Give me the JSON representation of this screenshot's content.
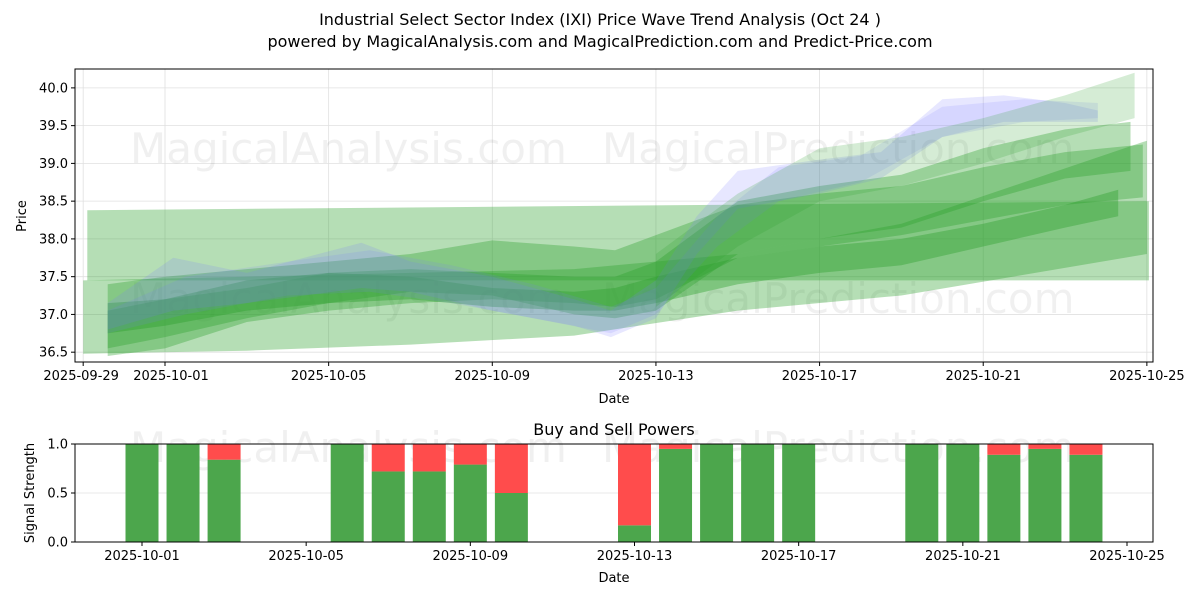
{
  "header": {
    "title": "Industrial Select Sector Index (IXI) Price Wave Trend Analysis (Oct 24 )",
    "subtitle": "powered by MagicalAnalysis.com and MagicalPrediction.com and Predict-Price.com"
  },
  "watermarks": [
    "MagicalAnalysis.com",
    "MagicalPrediction.com"
  ],
  "colors": {
    "band_green": "#2ca02c",
    "band_blue": "#7b7bff",
    "buy": "#4ca64c",
    "sell": "#ff4c4c",
    "grid": "#e0e0e0"
  },
  "chart_data": [
    {
      "type": "area",
      "title": "",
      "xlabel": "Date",
      "ylabel": "Price",
      "x_range": [
        "2025-09-29",
        "2025-10-25"
      ],
      "x_min_offset_days": -0.2,
      "x_max_offset_days": 26.15,
      "ylim": [
        36.37,
        40.25
      ],
      "grid": true,
      "x_ticks": [
        "2025-09-29",
        "2025-10-01",
        "2025-10-05",
        "2025-10-09",
        "2025-10-13",
        "2025-10-17",
        "2025-10-21",
        "2025-10-25"
      ],
      "y_ticks": [
        "36.5",
        "37.0",
        "37.5",
        "38.0",
        "38.5",
        "39.0",
        "39.5",
        "40.0"
      ],
      "bands": [
        {
          "name": "wide-band-1",
          "color": "green",
          "opacity": 0.35,
          "x": [
            0.1,
            26.05
          ],
          "upper": [
            38.38,
            38.5
          ],
          "lower": [
            37.45,
            37.45
          ],
          "skew_end": [
            [
              25.6,
              39.9
            ],
            [
              26.05,
              38.5
            ]
          ]
        },
        {
          "name": "wide-band-2",
          "color": "green",
          "opacity": 0.35,
          "x": [
            0,
            4,
            8,
            12,
            16,
            20,
            26
          ],
          "upper": [
            37.45,
            37.5,
            37.55,
            37.6,
            37.8,
            38.2,
            39.3
          ],
          "lower": [
            36.48,
            36.52,
            36.6,
            36.72,
            37.05,
            37.25,
            37.8
          ]
        },
        {
          "name": "green-band-3",
          "color": "green",
          "opacity": 0.35,
          "x": [
            0.6,
            2,
            4,
            6,
            8,
            10,
            12,
            13,
            14,
            16,
            18,
            20,
            22,
            24,
            25.9
          ],
          "upper": [
            37.4,
            37.5,
            37.6,
            37.7,
            37.8,
            37.98,
            37.9,
            37.85,
            38.05,
            38.45,
            38.6,
            38.7,
            38.95,
            39.15,
            39.25
          ],
          "lower": [
            36.45,
            36.55,
            36.9,
            37.05,
            37.15,
            37.2,
            37.15,
            37.1,
            37.2,
            37.75,
            37.9,
            38.05,
            38.25,
            38.45,
            38.55
          ]
        },
        {
          "name": "green-band-4",
          "color": "green",
          "opacity": 0.35,
          "x": [
            0.6,
            2,
            4,
            6,
            8,
            10,
            12,
            13,
            14,
            16,
            18,
            20,
            22,
            24,
            25.6
          ],
          "upper": [
            37.05,
            37.2,
            37.35,
            37.55,
            37.6,
            37.55,
            37.5,
            37.5,
            37.7,
            38.5,
            38.7,
            38.85,
            39.2,
            39.45,
            39.55
          ],
          "lower": [
            36.55,
            36.7,
            36.95,
            37.15,
            37.3,
            37.25,
            37.0,
            36.95,
            37.05,
            37.8,
            38.0,
            38.15,
            38.5,
            38.8,
            38.9
          ]
        },
        {
          "name": "green-band-5",
          "color": "green",
          "opacity": 0.4,
          "x": [
            0.6,
            2,
            4,
            6,
            8,
            10,
            12,
            13,
            14,
            16,
            18,
            20,
            22,
            24,
            25.3
          ],
          "upper": [
            37.15,
            37.2,
            37.45,
            37.55,
            37.5,
            37.35,
            37.3,
            37.35,
            37.5,
            37.75,
            37.9,
            38.0,
            38.2,
            38.45,
            38.65
          ],
          "lower": [
            36.75,
            36.85,
            37.05,
            37.15,
            37.2,
            37.1,
            37.05,
            37.05,
            37.15,
            37.4,
            37.55,
            37.65,
            37.9,
            38.15,
            38.3
          ]
        },
        {
          "name": "blue-band-1",
          "color": "blue",
          "opacity": 0.18,
          "x": [
            0.6,
            2.2,
            4,
            6.8,
            8,
            10,
            12,
            12.9,
            14,
            15,
            16,
            18,
            19.5,
            21,
            22.5,
            24,
            24.8
          ],
          "upper": [
            37.15,
            37.75,
            37.55,
            37.95,
            37.7,
            37.5,
            37.2,
            37.05,
            37.45,
            38.3,
            38.9,
            39.05,
            39.15,
            39.85,
            39.9,
            39.8,
            39.7
          ],
          "lower": [
            36.8,
            37.05,
            37.15,
            37.35,
            37.3,
            37.05,
            36.85,
            36.7,
            36.95,
            37.8,
            38.4,
            38.6,
            38.8,
            39.35,
            39.55,
            39.55,
            39.55
          ]
        },
        {
          "name": "blue-band-2",
          "color": "blue",
          "opacity": 0.15,
          "x": [
            0.6,
            2.5,
            5,
            7,
            9,
            11,
            12.9,
            14,
            15.5,
            17,
            19,
            21,
            23,
            24.8
          ],
          "upper": [
            37.05,
            37.5,
            37.7,
            37.85,
            37.65,
            37.4,
            37.1,
            37.35,
            38.3,
            38.95,
            39.1,
            39.75,
            39.85,
            39.8
          ],
          "lower": [
            36.75,
            37.0,
            37.25,
            37.3,
            37.15,
            36.95,
            36.75,
            37.0,
            37.9,
            38.5,
            38.75,
            39.35,
            39.55,
            39.6
          ]
        },
        {
          "name": "green-upper-fan",
          "color": "green",
          "opacity": 0.2,
          "x": [
            14,
            16,
            18,
            20,
            22,
            24,
            25.7
          ],
          "upper": [
            37.8,
            38.6,
            39.2,
            39.35,
            39.6,
            39.9,
            40.2
          ],
          "lower": [
            37.1,
            37.9,
            38.5,
            38.7,
            39.0,
            39.35,
            39.6
          ]
        }
      ]
    },
    {
      "type": "bar",
      "title": "Buy and Sell Powers",
      "xlabel": "Date",
      "ylabel": "Signal Strength",
      "ylim": [
        0,
        1
      ],
      "y_ticks": [
        "0.0",
        "0.5",
        "1.0"
      ],
      "x_ticks": [
        "2025-10-01",
        "2025-10-05",
        "2025-10-09",
        "2025-10-13",
        "2025-10-17",
        "2025-10-21",
        "2025-10-25"
      ],
      "grid": true,
      "categories": [
        "2025-10-01",
        "2025-10-02",
        "2025-10-03",
        "2025-10-06",
        "2025-10-07",
        "2025-10-08",
        "2025-10-09",
        "2025-10-10",
        "2025-10-13",
        "2025-10-14",
        "2025-10-15",
        "2025-10-16",
        "2025-10-17",
        "2025-10-20",
        "2025-10-21",
        "2025-10-22",
        "2025-10-23",
        "2025-10-24"
      ],
      "series": [
        {
          "name": "Buy",
          "color": "#4ca64c",
          "values": [
            1.0,
            1.0,
            0.84,
            1.0,
            0.72,
            0.72,
            0.79,
            0.5,
            0.17,
            0.95,
            1.0,
            1.0,
            1.0,
            1.0,
            1.0,
            0.89,
            0.95,
            0.89
          ]
        },
        {
          "name": "Sell",
          "color": "#ff4c4c",
          "values": [
            0.0,
            0.0,
            0.16,
            0.0,
            0.28,
            0.28,
            0.21,
            0.5,
            0.83,
            0.05,
            0.0,
            0.0,
            0.0,
            0.0,
            0.0,
            0.11,
            0.05,
            0.11
          ]
        }
      ]
    }
  ]
}
